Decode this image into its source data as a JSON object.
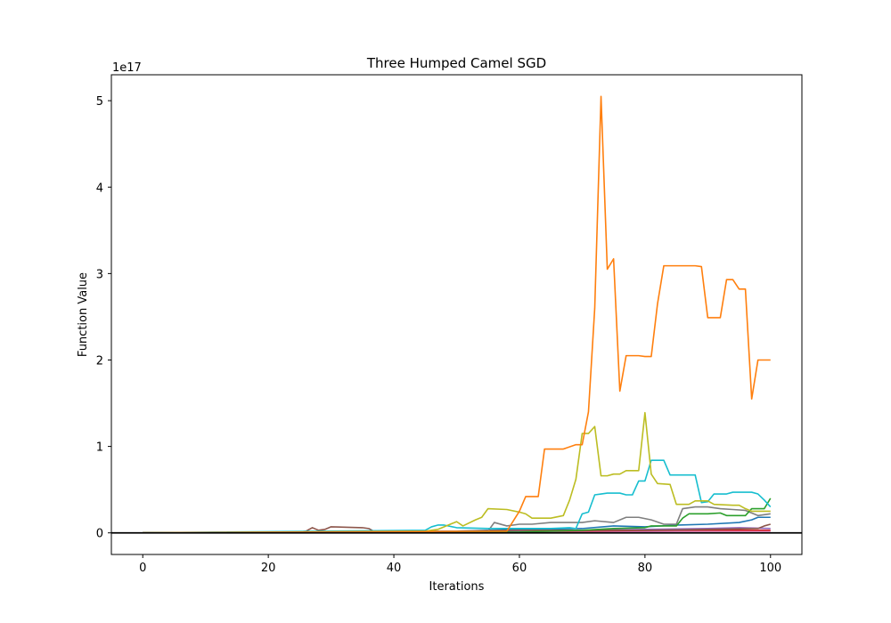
{
  "chart_data": {
    "type": "line",
    "title": "Three Humped Camel SGD",
    "xlabel": "Iterations",
    "ylabel": "Function Value",
    "y_offset_text": "1e17",
    "xlim": [
      -5,
      105
    ],
    "ylim": [
      -0.25,
      5.3
    ],
    "y_unit_multiplier": 1e+17,
    "xticks": [
      0,
      20,
      40,
      60,
      80,
      100
    ],
    "yticks": [
      0,
      1,
      2,
      3,
      4,
      5
    ],
    "grid": false,
    "legend": "none",
    "reference_line": {
      "y": 0,
      "color": "#000000"
    },
    "series": [
      {
        "color": "#ff7f0e",
        "points": [
          [
            0,
            0
          ],
          [
            58,
            0.02
          ],
          [
            60,
            0.25
          ],
          [
            61,
            0.42
          ],
          [
            63,
            0.42
          ],
          [
            64,
            0.97
          ],
          [
            67,
            0.97
          ],
          [
            69,
            1.02
          ],
          [
            70,
            1.02
          ],
          [
            71,
            1.4
          ],
          [
            72,
            2.6
          ],
          [
            73,
            5.05
          ],
          [
            74,
            3.05
          ],
          [
            75,
            3.17
          ],
          [
            76,
            1.64
          ],
          [
            77,
            2.05
          ],
          [
            79,
            2.05
          ],
          [
            80,
            2.04
          ],
          [
            81,
            2.04
          ],
          [
            82,
            2.65
          ],
          [
            83,
            3.09
          ],
          [
            88,
            3.09
          ],
          [
            89,
            3.08
          ],
          [
            90,
            2.49
          ],
          [
            92,
            2.49
          ],
          [
            93,
            2.93
          ],
          [
            94,
            2.93
          ],
          [
            95,
            2.82
          ],
          [
            96,
            2.82
          ],
          [
            97,
            1.55
          ],
          [
            98,
            2.0
          ],
          [
            100,
            2.0
          ]
        ]
      },
      {
        "color": "#bcbd22",
        "points": [
          [
            0,
            0
          ],
          [
            45,
            0.02
          ],
          [
            47,
            0.04
          ],
          [
            49,
            0.1
          ],
          [
            50,
            0.13
          ],
          [
            51,
            0.08
          ],
          [
            53,
            0.15
          ],
          [
            54,
            0.18
          ],
          [
            55,
            0.28
          ],
          [
            58,
            0.27
          ],
          [
            60,
            0.24
          ],
          [
            61,
            0.22
          ],
          [
            62,
            0.17
          ],
          [
            65,
            0.17
          ],
          [
            67,
            0.2
          ],
          [
            68,
            0.38
          ],
          [
            69,
            0.62
          ],
          [
            70,
            1.15
          ],
          [
            71,
            1.15
          ],
          [
            72,
            1.23
          ],
          [
            73,
            0.66
          ],
          [
            74,
            0.66
          ],
          [
            75,
            0.68
          ],
          [
            76,
            0.68
          ],
          [
            77,
            0.72
          ],
          [
            79,
            0.72
          ],
          [
            80,
            1.39
          ],
          [
            81,
            0.68
          ],
          [
            82,
            0.57
          ],
          [
            84,
            0.56
          ],
          [
            85,
            0.33
          ],
          [
            87,
            0.33
          ],
          [
            88,
            0.37
          ],
          [
            90,
            0.37
          ],
          [
            91,
            0.33
          ],
          [
            94,
            0.32
          ],
          [
            95,
            0.32
          ],
          [
            96,
            0.28
          ],
          [
            97,
            0.25
          ],
          [
            100,
            0.25
          ]
        ]
      },
      {
        "color": "#17becf",
        "points": [
          [
            0,
            0
          ],
          [
            45,
            0.03
          ],
          [
            46,
            0.07
          ],
          [
            47,
            0.09
          ],
          [
            48,
            0.09
          ],
          [
            50,
            0.06
          ],
          [
            55,
            0.05
          ],
          [
            65,
            0.05
          ],
          [
            68,
            0.06
          ],
          [
            69,
            0.05
          ],
          [
            70,
            0.22
          ],
          [
            71,
            0.24
          ],
          [
            72,
            0.44
          ],
          [
            73,
            0.45
          ],
          [
            74,
            0.46
          ],
          [
            76,
            0.46
          ],
          [
            77,
            0.44
          ],
          [
            78,
            0.44
          ],
          [
            79,
            0.6
          ],
          [
            80,
            0.6
          ],
          [
            81,
            0.84
          ],
          [
            83,
            0.84
          ],
          [
            84,
            0.67
          ],
          [
            88,
            0.67
          ],
          [
            89,
            0.35
          ],
          [
            90,
            0.36
          ],
          [
            91,
            0.45
          ],
          [
            93,
            0.45
          ],
          [
            94,
            0.47
          ],
          [
            97,
            0.47
          ],
          [
            98,
            0.45
          ],
          [
            99,
            0.38
          ],
          [
            100,
            0.3
          ]
        ]
      },
      {
        "color": "#2ca02c",
        "points": [
          [
            0,
            0
          ],
          [
            60,
            0.01
          ],
          [
            70,
            0.03
          ],
          [
            75,
            0.05
          ],
          [
            80,
            0.06
          ],
          [
            81,
            0.08
          ],
          [
            85,
            0.08
          ],
          [
            86,
            0.17
          ],
          [
            87,
            0.22
          ],
          [
            90,
            0.22
          ],
          [
            92,
            0.23
          ],
          [
            93,
            0.2
          ],
          [
            96,
            0.2
          ],
          [
            97,
            0.28
          ],
          [
            99,
            0.28
          ],
          [
            100,
            0.4
          ]
        ]
      },
      {
        "color": "#7f7f7f",
        "points": [
          [
            0,
            0
          ],
          [
            55,
            0.02
          ],
          [
            56,
            0.12
          ],
          [
            58,
            0.08
          ],
          [
            60,
            0.1
          ],
          [
            62,
            0.1
          ],
          [
            65,
            0.12
          ],
          [
            70,
            0.12
          ],
          [
            72,
            0.14
          ],
          [
            75,
            0.12
          ],
          [
            77,
            0.18
          ],
          [
            79,
            0.18
          ],
          [
            81,
            0.15
          ],
          [
            83,
            0.1
          ],
          [
            85,
            0.1
          ],
          [
            86,
            0.28
          ],
          [
            88,
            0.3
          ],
          [
            90,
            0.3
          ],
          [
            92,
            0.28
          ],
          [
            94,
            0.27
          ],
          [
            96,
            0.26
          ],
          [
            98,
            0.2
          ],
          [
            100,
            0.22
          ]
        ]
      },
      {
        "color": "#8c564b",
        "points": [
          [
            0,
            0
          ],
          [
            25,
            0.01
          ],
          [
            26,
            0.02
          ],
          [
            27,
            0.06
          ],
          [
            28,
            0.03
          ],
          [
            29,
            0.04
          ],
          [
            30,
            0.07
          ],
          [
            35,
            0.06
          ],
          [
            36,
            0.05
          ],
          [
            37,
            0.01
          ],
          [
            50,
            0.02
          ],
          [
            60,
            0.03
          ],
          [
            70,
            0.03
          ],
          [
            80,
            0.03
          ],
          [
            90,
            0.04
          ],
          [
            98,
            0.05
          ],
          [
            99,
            0.08
          ],
          [
            100,
            0.1
          ]
        ]
      },
      {
        "color": "#1f77b4",
        "points": [
          [
            0,
            0
          ],
          [
            40,
            0.01
          ],
          [
            50,
            0.02
          ],
          [
            60,
            0.04
          ],
          [
            70,
            0.05
          ],
          [
            75,
            0.08
          ],
          [
            80,
            0.07
          ],
          [
            85,
            0.09
          ],
          [
            90,
            0.1
          ],
          [
            95,
            0.12
          ],
          [
            97,
            0.15
          ],
          [
            98,
            0.18
          ],
          [
            100,
            0.18
          ]
        ]
      },
      {
        "color": "#9467bd",
        "points": [
          [
            0,
            0
          ],
          [
            50,
            0.01
          ],
          [
            60,
            0.02
          ],
          [
            70,
            0.03
          ],
          [
            80,
            0.04
          ],
          [
            90,
            0.05
          ],
          [
            95,
            0.06
          ],
          [
            100,
            0.05
          ]
        ]
      },
      {
        "color": "#d62728",
        "points": [
          [
            0,
            0
          ],
          [
            45,
            0.005
          ],
          [
            55,
            0.01
          ],
          [
            65,
            0.02
          ],
          [
            75,
            0.025
          ],
          [
            85,
            0.03
          ],
          [
            95,
            0.03
          ],
          [
            100,
            0.03
          ]
        ]
      },
      {
        "color": "#e377c2",
        "points": [
          [
            0,
            0
          ],
          [
            40,
            0.005
          ],
          [
            60,
            0.01
          ],
          [
            80,
            0.015
          ],
          [
            90,
            0.02
          ],
          [
            100,
            0.02
          ]
        ]
      }
    ]
  }
}
